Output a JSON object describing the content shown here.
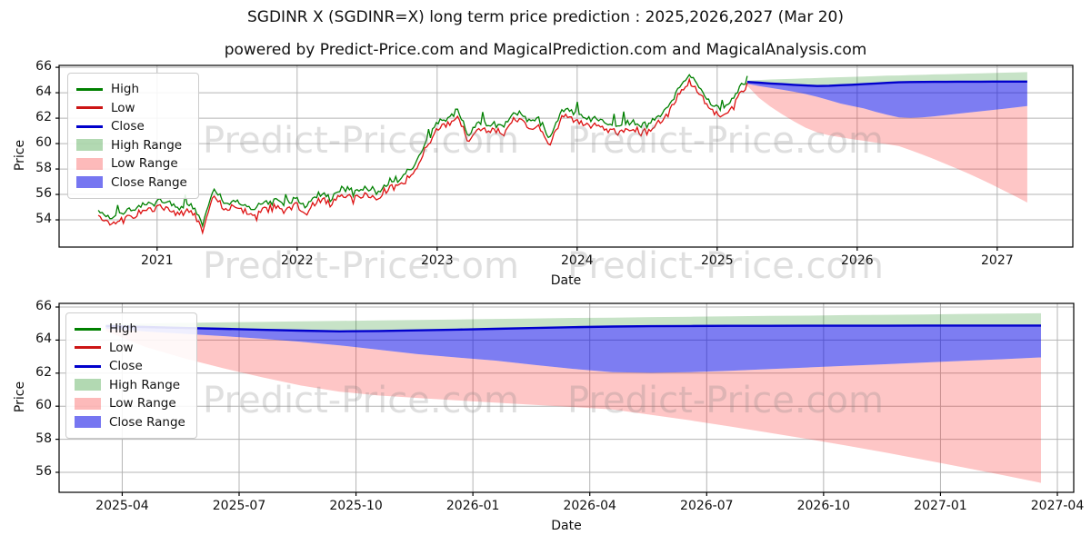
{
  "title": "SGDINR X (SGDINR=X) long term price prediction : 2025,2026,2027 (Mar 20)",
  "subtitle": "powered by Predict-Price.com and MagicalPrediction.com and MagicalAnalysis.com",
  "watermark_text": "Predict-Price.com",
  "colors": {
    "high_line": "#008000",
    "low_line": "#dd1111",
    "close_line": "#0000cc",
    "high_fill": "rgba(0,128,0,0.22)",
    "low_fill": "rgba(250,45,45,0.27)",
    "close_fill": "rgba(5,5,230,0.52)",
    "grid": "#b4b4b4",
    "axis": "#000000",
    "watermark": "rgba(128,128,128,0.25)"
  },
  "legend": [
    {
      "label": "High",
      "type": "line",
      "color": "#008000"
    },
    {
      "label": "Low",
      "type": "line",
      "color": "#cc1515"
    },
    {
      "label": "Close",
      "type": "line",
      "color": "#0000cc"
    },
    {
      "label": "High Range",
      "type": "patch",
      "color": "rgba(0,128,0,0.30)"
    },
    {
      "label": "Low Range",
      "type": "patch",
      "color": "rgba(250,45,45,0.33)"
    },
    {
      "label": "Close Range",
      "type": "patch",
      "color": "rgba(5,5,230,0.55)"
    }
  ],
  "chart_data": [
    {
      "name": "history-and-forecast",
      "type": "line",
      "title": "",
      "xlabel": "Date",
      "ylabel": "Price",
      "grid": true,
      "legend_position": "upper-left",
      "xlim_years": [
        2020.3,
        2027.54
      ],
      "ylim": [
        51.86,
        66.15
      ],
      "x_ticks": [
        {
          "v": 2021,
          "label": "2021"
        },
        {
          "v": 2022,
          "label": "2022"
        },
        {
          "v": 2023,
          "label": "2023"
        },
        {
          "v": 2024,
          "label": "2024"
        },
        {
          "v": 2025,
          "label": "2025"
        },
        {
          "v": 2026,
          "label": "2026"
        },
        {
          "v": 2027,
          "label": "2027"
        }
      ],
      "y_ticks": [
        54,
        56,
        58,
        60,
        62,
        64,
        66
      ],
      "historical": {
        "x_start": 2020.58,
        "x_end": 2025.215,
        "months": [
          "2020-07",
          "2020-08",
          "2020-09",
          "2020-10",
          "2020-11",
          "2020-12",
          "2021-01",
          "2021-02",
          "2021-03",
          "2021-04",
          "2021-05",
          "2021-06",
          "2021-07",
          "2021-08",
          "2021-09",
          "2021-10",
          "2021-11",
          "2021-12",
          "2022-01",
          "2022-02",
          "2022-03",
          "2022-04",
          "2022-05",
          "2022-06",
          "2022-07",
          "2022-08",
          "2022-09",
          "2022-10",
          "2022-11",
          "2022-12",
          "2023-01",
          "2023-02",
          "2023-03",
          "2023-04",
          "2023-05",
          "2023-06",
          "2023-07",
          "2023-08",
          "2023-09",
          "2023-10",
          "2023-11",
          "2023-12",
          "2024-01",
          "2024-02",
          "2024-03",
          "2024-04",
          "2024-05",
          "2024-06",
          "2024-07",
          "2024-08",
          "2024-09",
          "2024-10",
          "2024-11",
          "2024-12",
          "2025-01",
          "2025-02",
          "2025-03"
        ],
        "close": [
          54.55,
          53.9,
          54.25,
          54.6,
          55.0,
          55.2,
          55.15,
          54.75,
          54.95,
          53.45,
          56.1,
          55.1,
          55.25,
          54.6,
          55.05,
          55.25,
          54.95,
          55.4,
          54.8,
          55.9,
          55.4,
          56.3,
          55.85,
          56.45,
          55.95,
          56.6,
          57.1,
          57.6,
          59.3,
          61.0,
          61.8,
          62.3,
          60.3,
          61.6,
          61.3,
          61.0,
          62.3,
          61.5,
          61.7,
          60.1,
          62.5,
          62.2,
          61.6,
          61.85,
          61.2,
          61.0,
          61.4,
          61.1,
          61.5,
          62.4,
          63.9,
          65.1,
          64.0,
          62.7,
          62.45,
          63.7,
          64.9
        ],
        "high_offset": 0.25,
        "low_offset": 0.25
      },
      "forecast_note": "prediction bands identical to second chart forecast data"
    },
    {
      "name": "forecast-detail",
      "type": "area",
      "title": "",
      "xlabel": "Date",
      "ylabel": "Price",
      "grid": true,
      "legend_position": "upper-left",
      "xlim_years": [
        2025.115,
        2027.285
      ],
      "ylim": [
        54.79,
        66.22
      ],
      "x_ticks": [
        {
          "v": 2025.25,
          "label": "2025-04"
        },
        {
          "v": 2025.5,
          "label": "2025-07"
        },
        {
          "v": 2025.75,
          "label": "2025-10"
        },
        {
          "v": 2026.0,
          "label": "2026-01"
        },
        {
          "v": 2026.25,
          "label": "2026-04"
        },
        {
          "v": 2026.5,
          "label": "2026-07"
        },
        {
          "v": 2026.75,
          "label": "2026-10"
        },
        {
          "v": 2027.0,
          "label": "2027-01"
        },
        {
          "v": 2027.25,
          "label": "2027-04"
        }
      ],
      "y_ticks": [
        56,
        58,
        60,
        62,
        64,
        66
      ],
      "forecast": {
        "x_start": 2025.215,
        "x_end": 2027.215,
        "months": [
          "2025-03",
          "2025-04",
          "2025-05",
          "2025-06",
          "2025-07",
          "2025-08",
          "2025-09",
          "2025-10",
          "2025-11",
          "2025-12",
          "2026-01",
          "2026-02",
          "2026-03",
          "2026-04",
          "2026-05",
          "2026-06",
          "2026-07",
          "2026-08",
          "2026-09",
          "2026-10",
          "2026-11",
          "2026-12",
          "2027-01",
          "2027-02",
          "2027-03"
        ],
        "close_mean": [
          64.85,
          64.79,
          64.73,
          64.68,
          64.62,
          64.57,
          64.53,
          64.55,
          64.59,
          64.63,
          64.68,
          64.73,
          64.78,
          64.82,
          64.84,
          64.85,
          64.86,
          64.86,
          64.87,
          64.87,
          64.87,
          64.88,
          64.88,
          64.88,
          64.88
        ],
        "high_max": [
          64.95,
          65.0,
          65.04,
          65.07,
          65.1,
          65.13,
          65.16,
          65.19,
          65.22,
          65.25,
          65.28,
          65.31,
          65.34,
          65.36,
          65.39,
          65.41,
          65.44,
          65.46,
          65.48,
          65.51,
          65.53,
          65.55,
          65.58,
          65.6,
          65.62
        ],
        "close_min": [
          64.7,
          64.52,
          64.38,
          64.24,
          64.08,
          63.9,
          63.68,
          63.42,
          63.15,
          62.95,
          62.76,
          62.5,
          62.26,
          62.06,
          62.02,
          62.06,
          62.14,
          62.24,
          62.34,
          62.44,
          62.54,
          62.64,
          62.74,
          62.84,
          62.95
        ],
        "low_min": [
          64.55,
          63.6,
          62.9,
          62.3,
          61.75,
          61.25,
          60.88,
          60.65,
          60.5,
          60.35,
          60.22,
          60.08,
          59.95,
          59.8,
          59.48,
          59.14,
          58.78,
          58.4,
          58.02,
          57.62,
          57.2,
          56.76,
          56.3,
          55.84,
          55.36
        ]
      }
    }
  ]
}
